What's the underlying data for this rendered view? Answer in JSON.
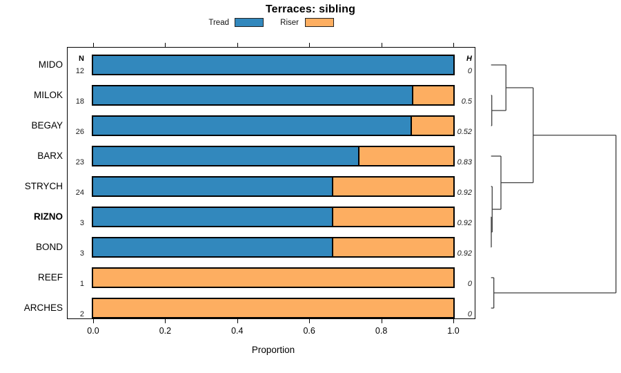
{
  "title": "Terraces: sibling",
  "legend": [
    {
      "label": "Tread",
      "color": "#3288BD"
    },
    {
      "label": "Riser",
      "color": "#FDAE61"
    }
  ],
  "columns": {
    "n_header": "N",
    "h_header": "H"
  },
  "xlabel": "Proportion",
  "x_ticks": [
    "0.0",
    "0.2",
    "0.4",
    "0.6",
    "0.8",
    "1.0"
  ],
  "chart_data": {
    "type": "bar",
    "orientation": "horizontal",
    "stacked": true,
    "title": "Terraces: sibling",
    "xlabel": "Proportion",
    "xlim": [
      0,
      1
    ],
    "legend_position": "top",
    "categories": [
      "MIDO",
      "MILOK",
      "BEGAY",
      "BARX",
      "STRYCH",
      "RIZNO",
      "BOND",
      "REEF",
      "ARCHES"
    ],
    "bold_categories": [
      "RIZNO"
    ],
    "series": [
      {
        "name": "Tread",
        "color": "#3288BD",
        "values": [
          1.0,
          0.889,
          0.885,
          0.739,
          0.667,
          0.667,
          0.667,
          0.0,
          0.0
        ]
      },
      {
        "name": "Riser",
        "color": "#FDAE61",
        "values": [
          0.0,
          0.111,
          0.115,
          0.261,
          0.333,
          0.333,
          0.333,
          1.0,
          1.0
        ]
      }
    ],
    "n_values": [
      "12",
      "18",
      "26",
      "23",
      "24",
      "3",
      "3",
      "1",
      "2"
    ],
    "h_values": [
      "0",
      "0.5",
      "0.52",
      "0.83",
      "0.92",
      "0.92",
      "0.92",
      "0",
      "0"
    ],
    "dendrogram": {
      "orientation": "right",
      "tree": {
        "height": 1.0,
        "children": [
          {
            "height": 0.337,
            "children": [
              {
                "height": 0.119,
                "children": [
                  {
                    "leaf": "MIDO"
                  },
                  {
                    "height": 0.0055,
                    "children": [
                      {
                        "leaf": "MILOK"
                      },
                      {
                        "leaf": "BEGAY"
                      }
                    ]
                  }
                ]
              },
              {
                "height": 0.079,
                "children": [
                  {
                    "leaf": "BARX"
                  },
                  {
                    "height": 0.0088,
                    "children": [
                      {
                        "leaf": "STRYCH"
                      },
                      {
                        "height": 0.0017,
                        "children": [
                          {
                            "leaf": "RIZNO"
                          },
                          {
                            "leaf": "BOND"
                          }
                        ]
                      }
                    ]
                  }
                ]
              }
            ]
          },
          {
            "height": 0.022,
            "children": [
              {
                "leaf": "REEF"
              },
              {
                "leaf": "ARCHES"
              }
            ]
          }
        ]
      }
    }
  }
}
